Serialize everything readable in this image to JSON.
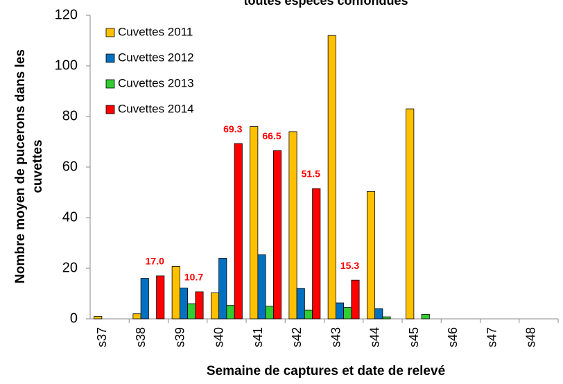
{
  "chart_data": {
    "type": "bar",
    "title": "toutes espèces confondues",
    "xlabel": "Semaine de captures et date de relevé",
    "ylabel": [
      "Nombre moyen de pucerons dans les",
      "cuvettes"
    ],
    "categories": [
      "s37",
      "s38",
      "s39",
      "s40",
      "s41",
      "s42",
      "s43",
      "s44",
      "s45",
      "s46",
      "s47",
      "s48"
    ],
    "series": [
      {
        "name": "Cuvettes 2011",
        "color": "#ffc000",
        "values": [
          1,
          2,
          20.7,
          10.3,
          76,
          74,
          112,
          50.3,
          83,
          null,
          null,
          null
        ]
      },
      {
        "name": "Cuvettes 2012",
        "color": "#0070c0",
        "values": [
          null,
          16,
          12.2,
          24,
          25.3,
          12,
          6.3,
          4,
          null,
          null,
          null,
          null
        ]
      },
      {
        "name": "Cuvettes 2013",
        "color": "#33cc33",
        "values": [
          null,
          null,
          6,
          5.3,
          5,
          3.5,
          4.5,
          0.8,
          1.8,
          null,
          null,
          null
        ]
      },
      {
        "name": "Cuvettes 2014",
        "color": "#ff0000",
        "values": [
          null,
          17.0,
          10.7,
          69.3,
          66.5,
          51.5,
          15.3,
          null,
          null,
          null,
          null,
          null
        ],
        "value_labels": [
          null,
          "17.0",
          "10.7",
          "69.3",
          "66.5",
          "51.5",
          "15.3",
          null,
          null,
          null,
          null,
          null
        ]
      }
    ],
    "ylim": [
      0,
      120
    ],
    "yticks": [
      0,
      20,
      40,
      60,
      80,
      100,
      120
    ],
    "legend": "upper left"
  }
}
